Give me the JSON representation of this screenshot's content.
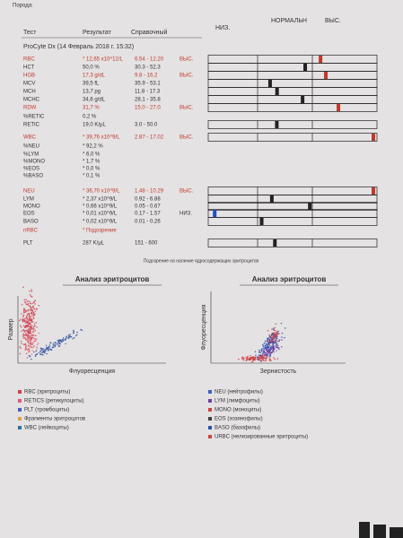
{
  "header": {
    "top": "Порода:",
    "columns": [
      "Тест",
      "Результат",
      "Справочный"
    ],
    "scale": [
      "НИЗ.",
      "НОРМАЛЬН",
      "ВЫС."
    ],
    "device": "ProCyte Dx (14 Февраль 2018 г. 15:32)"
  },
  "table": {
    "rows": [
      {
        "test": "RBC",
        "result": "* 12,65 x10^12/L",
        "range": "6.54 - 12.20",
        "flag": "ВЫС.",
        "color": "#c0392b"
      },
      {
        "test": "HCT",
        "result": "50,0 %",
        "range": "30.3 - 52.3"
      },
      {
        "test": "HGB",
        "result": "17,3 g/dL",
        "range": "9.8 - 16.2",
        "flag": "ВЫС.",
        "color": "#c0392b"
      },
      {
        "test": "MCV",
        "result": "39,5 fL",
        "range": "35.9 - 53.1"
      },
      {
        "test": "MCH",
        "result": "13,7 pg",
        "range": "11.8 - 17.3"
      },
      {
        "test": "MCHC",
        "result": "34,6 g/dL",
        "range": "28.1 - 35.8"
      },
      {
        "test": "RDW",
        "result": "31,7 %",
        "range": "15.0 - 27.0",
        "flag": "ВЫС.",
        "color": "#c0392b"
      },
      {
        "test": "%RETIC",
        "result": "0,2 %"
      },
      {
        "test": "RETIC",
        "result": "19,0 K/μL",
        "range": "3.0 - 50.0"
      },
      {
        "test": "WBC",
        "result": "* 39,76 x10^9/L",
        "range": "2.87 - 17.02",
        "flag": "ВЫС.",
        "color": "#c0392b"
      },
      {
        "test": "%NEU",
        "result": "* 92,2 %"
      },
      {
        "test": "%LYM",
        "result": "* 6,0 %"
      },
      {
        "test": "%MONO",
        "result": "* 1,7 %"
      },
      {
        "test": "%EOS",
        "result": "* 0,0 %"
      },
      {
        "test": "%BASO",
        "result": "* 0,1 %"
      },
      {
        "test": "NEU",
        "result": "* 36,70 x10^9/L",
        "range": "1.48 - 10.29",
        "flag": "ВЫС.",
        "color": "#c0392b"
      },
      {
        "test": "LYM",
        "result": "* 2,37 x10^9/L",
        "range": "0.92 - 6.88"
      },
      {
        "test": "MONO",
        "result": "* 0,66 x10^9/L",
        "range": "0.05 - 0.67"
      },
      {
        "test": "EOS",
        "result": "* 0,01 x10^9/L",
        "range": "0.17 - 1.57",
        "flag": "НИЗ."
      },
      {
        "test": "BASO",
        "result": "* 0,02 x10^9/L",
        "range": "0.01 - 0.26"
      },
      {
        "test": "nRBC",
        "result": "* Подозрение",
        "color": "#c0392b"
      },
      {
        "test": "PLT",
        "result": "287 K/μL",
        "range": "151 - 600"
      }
    ]
  },
  "note": "Подозрение на наличие ядросодержащих эритроцитов",
  "plots": [
    {
      "title": "Анализ эритроцитов",
      "y_label": "Размер",
      "x_label": "Флуоресценция"
    },
    {
      "title": "Анализ эритроцитов",
      "y_label": "Флуоресценция",
      "x_label": "Зернистость"
    }
  ],
  "legends": [
    [
      {
        "label": "RBC (эритроциты)",
        "color": "#d04040"
      },
      {
        "label": "RETICS (ретикулоциты)",
        "color": "#e05a7a"
      },
      {
        "label": "PLT (тромбоциты)",
        "color": "#4060c0"
      },
      {
        "label": "Фрагменты эритроцитов",
        "color": "#e0a040"
      },
      {
        "label": "WBC (лейкоциты)",
        "color": "#3070a0"
      }
    ],
    [
      {
        "label": "NEU (нейтрофилы)",
        "color": "#4060c0"
      },
      {
        "label": "LYM (лимфоциты)",
        "color": "#7040a0"
      },
      {
        "label": "MONO (моноциты)",
        "color": "#d04040"
      },
      {
        "label": "EOS (эозинофилы)",
        "color": "#404040"
      },
      {
        "label": "BASO (базофилы)",
        "color": "#3050b0"
      },
      {
        "label": "URBC (нелизированные эритроциты)",
        "color": "#d04040"
      }
    ]
  ]
}
